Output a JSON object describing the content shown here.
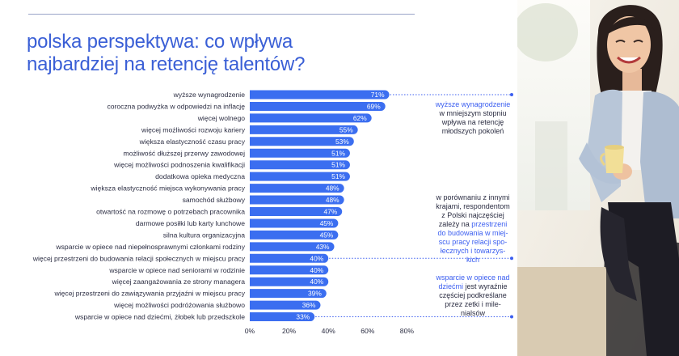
{
  "title": {
    "line1": "polska perspektywa: co wpływa",
    "line2": "najbardziej na retencję talentów?"
  },
  "chart_data": {
    "type": "bar",
    "orientation": "horizontal",
    "categories": [
      "wyższe wynagrodzenie",
      "coroczna podwyżka w odpowiedzi na inflację",
      "więcej wolnego",
      "więcej możliwości rozwoju kariery",
      "większa elastyczność czasu pracy",
      "możliwość dłuższej przerwy zawodowej",
      "więcej możliwości podnoszenia kwalifikacji",
      "dodatkowa opieka medyczna",
      "większa elastyczność miejsca wykonywania pracy",
      "samochód służbowy",
      "otwartość na rozmowę o potrzebach pracownika",
      "darmowe posiłki lub karty lunchowe",
      "silna kultura organizacyjna",
      "wsparcie w opiece nad niepełnosprawnymi członkami rodziny",
      "więcej przestrzeni do budowania relacji społecznych w miejscu pracy",
      "wsparcie w opiece nad seniorami w rodzinie",
      "więcej zaangażowania ze strony managera",
      "więcej przestrzeni do zawiązywania przyjaźni w miejscu pracy",
      "więcej możliwości podróżowania służbowo",
      "wsparcie w opiece nad dziećmi, żłobek lub przedszkole"
    ],
    "values": [
      71,
      69,
      62,
      55,
      53,
      51,
      51,
      51,
      48,
      48,
      47,
      45,
      45,
      43,
      40,
      40,
      40,
      39,
      36,
      33
    ],
    "value_labels": [
      "71%",
      "69%",
      "62%",
      "55%",
      "53%",
      "51%",
      "51%",
      "51%",
      "48%",
      "48%",
      "47%",
      "45%",
      "45%",
      "43%",
      "40%",
      "40%",
      "40%",
      "39%",
      "36%",
      "33%"
    ],
    "xticks": [
      "0%",
      "20%",
      "40%",
      "60%",
      "80%"
    ],
    "xtick_values": [
      0,
      20,
      40,
      60,
      80
    ],
    "xlim": [
      0,
      80
    ],
    "grid": false,
    "bar_color": "#3b6ef0",
    "label_color": "#ffffff",
    "annotations": [
      {
        "category_index": 0,
        "parts": [
          {
            "text": "wyższe wynagrodzenie",
            "highlight": true
          },
          {
            "text": "w mniejszym stopniu",
            "highlight": false
          },
          {
            "text": "wpływa na retencję",
            "highlight": false
          },
          {
            "text": "młodszych pokoleń",
            "highlight": false
          }
        ]
      },
      {
        "category_index": 14,
        "parts": [
          {
            "text": "w porównaniu z innymi",
            "highlight": false
          },
          {
            "text": "krajami, respondentom",
            "highlight": false
          },
          {
            "text": "z Polski najczęściej",
            "highlight": false
          },
          {
            "text": "zależy na ",
            "highlight": false,
            "inline_next": true
          },
          {
            "text": "przestrzeni",
            "highlight": true
          },
          {
            "text": "do budowania w miej-",
            "highlight": true
          },
          {
            "text": "scu pracy relacji spo-",
            "highlight": true
          },
          {
            "text": "łecznych i towarzys-",
            "highlight": true
          },
          {
            "text": "kich",
            "highlight": true
          }
        ]
      },
      {
        "category_index": 19,
        "parts": [
          {
            "text": "wsparcie w opiece nad",
            "highlight": true
          },
          {
            "text": "dziećmi",
            "highlight": true,
            "inline_next": true
          },
          {
            "text": " jest wyraźnie",
            "highlight": false
          },
          {
            "text": "częściej podkreślane",
            "highlight": false
          },
          {
            "text": "przez zetki i mile-",
            "highlight": false
          },
          {
            "text": "nialsów",
            "highlight": false
          }
        ]
      }
    ]
  },
  "colors": {
    "title": "#3a5fd6",
    "accent": "#3b5ef0",
    "text": "#2b2d42",
    "photo_bg": "#f3efe8"
  },
  "image": {
    "subject": "smiling woman with dark hair holding a yellow mug",
    "icon": "photo-person-with-mug"
  }
}
